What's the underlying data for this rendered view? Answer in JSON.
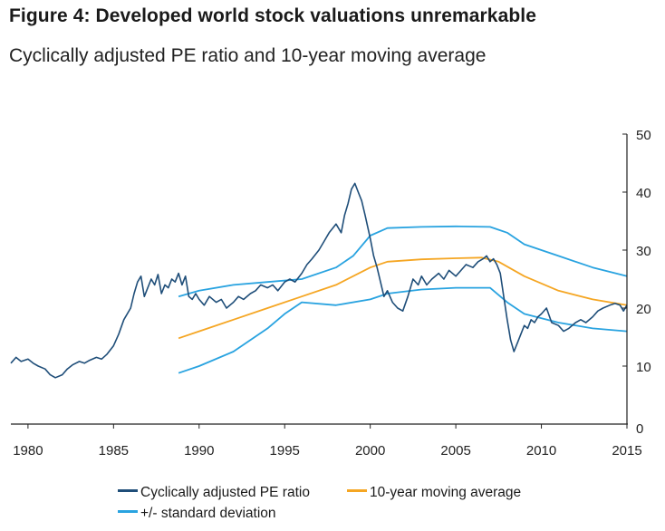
{
  "figure": {
    "title": "Figure 4: Developed world stock valuations unremarkable",
    "subtitle": "Cyclically adjusted PE ratio and 10-year moving average"
  },
  "colors": {
    "cape": "#1f4e79",
    "ma": "#f5a623",
    "sd": "#29a3e0",
    "axis": "#222222"
  },
  "chart_data": {
    "type": "line",
    "title": "Figure 4: Developed world stock valuations unremarkable",
    "subtitle": "Cyclically adjusted PE ratio and 10-year moving average",
    "xlabel": "",
    "ylabel": "",
    "xlim": [
      1979.0,
      2015.0
    ],
    "ylim": [
      0,
      50
    ],
    "x_ticks": [
      1980,
      1985,
      1990,
      1995,
      2000,
      2005,
      2010,
      2015
    ],
    "y_ticks": [
      0,
      10,
      20,
      30,
      40,
      50
    ],
    "y_axis_side": "right",
    "grid": false,
    "legend_position": "bottom",
    "series": [
      {
        "name": "Cyclically adjusted PE ratio",
        "color": "#1f4e79",
        "x": [
          1979.0,
          1979.3,
          1979.6,
          1980.0,
          1980.3,
          1980.6,
          1981.0,
          1981.3,
          1981.6,
          1982.0,
          1982.3,
          1982.6,
          1983.0,
          1983.3,
          1983.6,
          1984.0,
          1984.3,
          1984.6,
          1985.0,
          1985.3,
          1985.6,
          1986.0,
          1986.2,
          1986.4,
          1986.6,
          1986.8,
          1987.0,
          1987.2,
          1987.4,
          1987.6,
          1987.8,
          1988.0,
          1988.2,
          1988.4,
          1988.6,
          1988.8,
          1989.0,
          1989.2,
          1989.4,
          1989.6,
          1989.8,
          1990.0,
          1990.3,
          1990.6,
          1991.0,
          1991.3,
          1991.6,
          1992.0,
          1992.3,
          1992.6,
          1993.0,
          1993.3,
          1993.6,
          1994.0,
          1994.3,
          1994.6,
          1995.0,
          1995.3,
          1995.6,
          1996.0,
          1996.3,
          1996.6,
          1997.0,
          1997.3,
          1997.6,
          1998.0,
          1998.3,
          1998.5,
          1998.7,
          1998.9,
          1999.1,
          1999.3,
          1999.5,
          1999.7,
          2000.0,
          2000.2,
          2000.4,
          2000.6,
          2000.8,
          2001.0,
          2001.3,
          2001.6,
          2001.9,
          2002.2,
          2002.5,
          2002.8,
          2003.0,
          2003.3,
          2003.6,
          2004.0,
          2004.3,
          2004.6,
          2005.0,
          2005.3,
          2005.6,
          2006.0,
          2006.3,
          2006.6,
          2006.8,
          2007.0,
          2007.2,
          2007.4,
          2007.6,
          2007.8,
          2008.0,
          2008.2,
          2008.4,
          2008.6,
          2008.8,
          2009.0,
          2009.2,
          2009.4,
          2009.6,
          2009.8,
          2010.0,
          2010.3,
          2010.6,
          2011.0,
          2011.3,
          2011.6,
          2012.0,
          2012.3,
          2012.6,
          2013.0,
          2013.3,
          2013.6,
          2014.0,
          2014.3,
          2014.6,
          2014.8,
          2015.0
        ],
        "values": [
          10.5,
          11.5,
          10.8,
          11.2,
          10.5,
          10.0,
          9.5,
          8.5,
          8.0,
          8.5,
          9.5,
          10.2,
          10.8,
          10.5,
          11.0,
          11.5,
          11.2,
          12.0,
          13.5,
          15.5,
          18.0,
          20.0,
          22.5,
          24.5,
          25.5,
          22.0,
          23.5,
          25.0,
          24.0,
          25.8,
          22.5,
          24.0,
          23.5,
          25.0,
          24.5,
          26.0,
          24.0,
          25.5,
          22.0,
          21.5,
          22.5,
          21.5,
          20.5,
          22.0,
          21.0,
          21.5,
          20.0,
          21.0,
          22.0,
          21.5,
          22.5,
          23.0,
          24.0,
          23.5,
          24.0,
          23.0,
          24.5,
          25.0,
          24.5,
          26.0,
          27.5,
          28.5,
          30.0,
          31.5,
          33.0,
          34.5,
          33.0,
          36.0,
          38.0,
          40.5,
          41.5,
          40.0,
          38.5,
          36.0,
          32.0,
          29.0,
          27.0,
          24.5,
          22.0,
          23.0,
          21.0,
          20.0,
          19.5,
          22.0,
          25.0,
          24.0,
          25.5,
          24.0,
          25.0,
          26.0,
          25.0,
          26.5,
          25.5,
          26.5,
          27.5,
          27.0,
          28.0,
          28.5,
          29.0,
          28.0,
          28.5,
          27.5,
          26.0,
          22.0,
          18.0,
          14.5,
          12.5,
          14.0,
          15.5,
          17.0,
          16.5,
          18.0,
          17.5,
          18.5,
          19.0,
          20.0,
          17.5,
          17.0,
          16.0,
          16.5,
          17.5,
          18.0,
          17.5,
          18.5,
          19.5,
          20.0,
          20.5,
          20.8,
          20.5,
          19.5,
          20.5
        ]
      },
      {
        "name": "10-year moving average",
        "color": "#f5a623",
        "x": [
          1988.8,
          1990.0,
          1992.0,
          1994.0,
          1996.0,
          1998.0,
          2000.0,
          2001.0,
          2003.0,
          2005.0,
          2006.5,
          2007.5,
          2009.0,
          2011.0,
          2013.0,
          2015.0
        ],
        "values": [
          14.8,
          16.0,
          18.0,
          20.0,
          22.0,
          24.0,
          27.0,
          28.0,
          28.4,
          28.6,
          28.7,
          28.0,
          25.5,
          23.0,
          21.5,
          20.5
        ]
      },
      {
        "name": "+/- standard deviation",
        "color": "#29a3e0",
        "x": [
          1988.8,
          1990.0,
          1992.0,
          1994.0,
          1996.0,
          1998.0,
          1999.0,
          2000.0,
          2001.0,
          2003.0,
          2005.0,
          2007.0,
          2008.0,
          2009.0,
          2011.0,
          2013.0,
          2015.0
        ],
        "values": [
          22.0,
          23.0,
          24.0,
          24.5,
          25.0,
          27.0,
          29.0,
          32.5,
          33.8,
          34.0,
          34.1,
          34.0,
          33.0,
          31.0,
          29.0,
          27.0,
          25.5
        ]
      },
      {
        "name": "",
        "color": "#29a3e0",
        "x": [
          1988.8,
          1990.0,
          1992.0,
          1994.0,
          1995.0,
          1996.0,
          1998.0,
          2000.0,
          2001.0,
          2003.0,
          2005.0,
          2007.0,
          2008.0,
          2009.0,
          2011.0,
          2013.0,
          2015.0
        ],
        "values": [
          8.8,
          10.0,
          12.5,
          16.5,
          19.0,
          21.0,
          20.5,
          21.5,
          22.5,
          23.2,
          23.5,
          23.5,
          21.0,
          19.0,
          17.5,
          16.5,
          16.0
        ]
      }
    ]
  }
}
